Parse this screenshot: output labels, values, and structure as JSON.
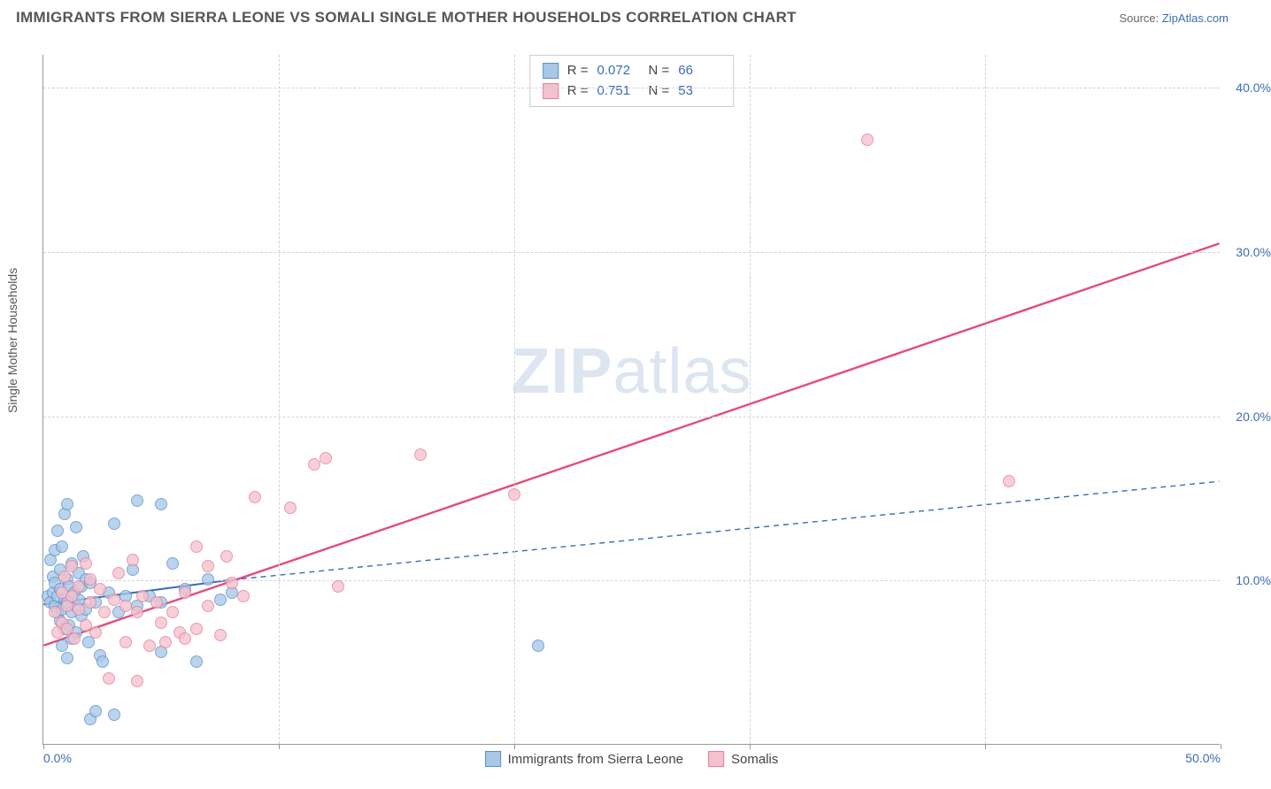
{
  "header": {
    "title": "IMMIGRANTS FROM SIERRA LEONE VS SOMALI SINGLE MOTHER HOUSEHOLDS CORRELATION CHART",
    "source_prefix": "Source: ",
    "source_link": "ZipAtlas.com"
  },
  "watermark": {
    "text_a": "ZIP",
    "text_b": "atlas"
  },
  "chart": {
    "type": "scatter",
    "ylabel": "Single Mother Households",
    "xlim": [
      0,
      50
    ],
    "ylim": [
      0,
      42
    ],
    "x_ticks": [
      0,
      10,
      20,
      30,
      40,
      50
    ],
    "x_tick_labels": {
      "0": "0.0%",
      "50": "50.0%"
    },
    "y_ticks": [
      10,
      20,
      30,
      40
    ],
    "y_tick_labels": {
      "10": "10.0%",
      "20": "20.0%",
      "30": "30.0%",
      "40": "40.0%"
    },
    "grid_color": "#d4d4d4",
    "axis_color": "#999999",
    "tick_label_color": "#3b6db5",
    "background_color": "#ffffff",
    "series": [
      {
        "id": "sierra_leone",
        "label": "Immigrants from Sierra Leone",
        "fill": "#a9c8e8",
        "stroke": "#5b8fc7",
        "marker_radius": 7,
        "R": "0.072",
        "N": "66",
        "trend": {
          "x1": 0,
          "y1": 8.5,
          "x2": 8.0,
          "y2": 10.0,
          "x3": 50,
          "y3": 16.0,
          "color": "#3b6db5",
          "solid_until_x": 8.0,
          "dash": "6,5",
          "width": 2
        },
        "points": [
          [
            0.2,
            9.0
          ],
          [
            0.3,
            8.6
          ],
          [
            0.3,
            11.2
          ],
          [
            0.4,
            9.2
          ],
          [
            0.4,
            10.2
          ],
          [
            0.5,
            8.4
          ],
          [
            0.5,
            9.8
          ],
          [
            0.5,
            11.8
          ],
          [
            0.6,
            8.0
          ],
          [
            0.6,
            9.0
          ],
          [
            0.6,
            13.0
          ],
          [
            0.7,
            7.5
          ],
          [
            0.7,
            9.4
          ],
          [
            0.7,
            10.6
          ],
          [
            0.8,
            6.0
          ],
          [
            0.8,
            8.2
          ],
          [
            0.8,
            12.0
          ],
          [
            0.9,
            7.0
          ],
          [
            0.9,
            8.8
          ],
          [
            0.9,
            14.0
          ],
          [
            1.0,
            5.2
          ],
          [
            1.0,
            8.6
          ],
          [
            1.0,
            10.0
          ],
          [
            1.0,
            14.6
          ],
          [
            1.1,
            7.2
          ],
          [
            1.1,
            9.6
          ],
          [
            1.2,
            6.4
          ],
          [
            1.2,
            8.0
          ],
          [
            1.2,
            11.0
          ],
          [
            1.3,
            9.2
          ],
          [
            1.4,
            6.8
          ],
          [
            1.4,
            8.4
          ],
          [
            1.4,
            13.2
          ],
          [
            1.5,
            8.8
          ],
          [
            1.5,
            10.4
          ],
          [
            1.6,
            7.8
          ],
          [
            1.6,
            9.6
          ],
          [
            1.7,
            11.4
          ],
          [
            1.8,
            8.2
          ],
          [
            1.8,
            10.0
          ],
          [
            1.9,
            6.2
          ],
          [
            2.0,
            9.8
          ],
          [
            2.0,
            1.5
          ],
          [
            2.2,
            8.6
          ],
          [
            2.2,
            2.0
          ],
          [
            2.4,
            5.4
          ],
          [
            2.5,
            5.0
          ],
          [
            2.8,
            9.2
          ],
          [
            3.0,
            1.8
          ],
          [
            3.0,
            13.4
          ],
          [
            3.2,
            8.0
          ],
          [
            3.5,
            9.0
          ],
          [
            3.8,
            10.6
          ],
          [
            4.0,
            8.4
          ],
          [
            4.0,
            14.8
          ],
          [
            4.5,
            9.0
          ],
          [
            5.0,
            8.6
          ],
          [
            5.0,
            14.6
          ],
          [
            5.0,
            5.6
          ],
          [
            5.5,
            11.0
          ],
          [
            6.0,
            9.4
          ],
          [
            6.5,
            5.0
          ],
          [
            7.0,
            10.0
          ],
          [
            7.5,
            8.8
          ],
          [
            8.0,
            9.2
          ],
          [
            21.0,
            6.0
          ]
        ]
      },
      {
        "id": "somalis",
        "label": "Somalis",
        "fill": "#f4c2ce",
        "stroke": "#e57f9a",
        "marker_radius": 7,
        "R": "0.751",
        "N": "53",
        "trend": {
          "x1": 0,
          "y1": 6.0,
          "x2": 50,
          "y2": 30.5,
          "color": "#e64b77",
          "width": 2.4
        },
        "points": [
          [
            0.5,
            8.0
          ],
          [
            0.6,
            6.8
          ],
          [
            0.8,
            9.2
          ],
          [
            0.8,
            7.4
          ],
          [
            0.9,
            10.2
          ],
          [
            1.0,
            8.4
          ],
          [
            1.0,
            7.0
          ],
          [
            1.2,
            9.0
          ],
          [
            1.2,
            10.8
          ],
          [
            1.3,
            6.4
          ],
          [
            1.5,
            8.2
          ],
          [
            1.5,
            9.6
          ],
          [
            1.8,
            11.0
          ],
          [
            1.8,
            7.2
          ],
          [
            2.0,
            8.6
          ],
          [
            2.0,
            10.0
          ],
          [
            2.2,
            6.8
          ],
          [
            2.4,
            9.4
          ],
          [
            2.6,
            8.0
          ],
          [
            2.8,
            4.0
          ],
          [
            3.0,
            8.8
          ],
          [
            3.2,
            10.4
          ],
          [
            3.5,
            6.2
          ],
          [
            3.5,
            8.4
          ],
          [
            3.8,
            11.2
          ],
          [
            4.0,
            8.0
          ],
          [
            4.0,
            3.8
          ],
          [
            4.2,
            9.0
          ],
          [
            4.5,
            6.0
          ],
          [
            4.8,
            8.6
          ],
          [
            5.0,
            7.4
          ],
          [
            5.2,
            6.2
          ],
          [
            5.5,
            8.0
          ],
          [
            5.8,
            6.8
          ],
          [
            6.0,
            9.2
          ],
          [
            6.0,
            6.4
          ],
          [
            6.5,
            7.0
          ],
          [
            6.5,
            12.0
          ],
          [
            7.0,
            8.4
          ],
          [
            7.0,
            10.8
          ],
          [
            7.5,
            6.6
          ],
          [
            7.8,
            11.4
          ],
          [
            8.0,
            9.8
          ],
          [
            8.5,
            9.0
          ],
          [
            9.0,
            15.0
          ],
          [
            10.5,
            14.4
          ],
          [
            11.5,
            17.0
          ],
          [
            12.0,
            17.4
          ],
          [
            12.5,
            9.6
          ],
          [
            16.0,
            17.6
          ],
          [
            20.0,
            15.2
          ],
          [
            35.0,
            36.8
          ],
          [
            41.0,
            16.0
          ]
        ]
      }
    ],
    "legend_box": {
      "R_label": "R =",
      "N_label": "N ="
    },
    "bottom_legend": true
  }
}
